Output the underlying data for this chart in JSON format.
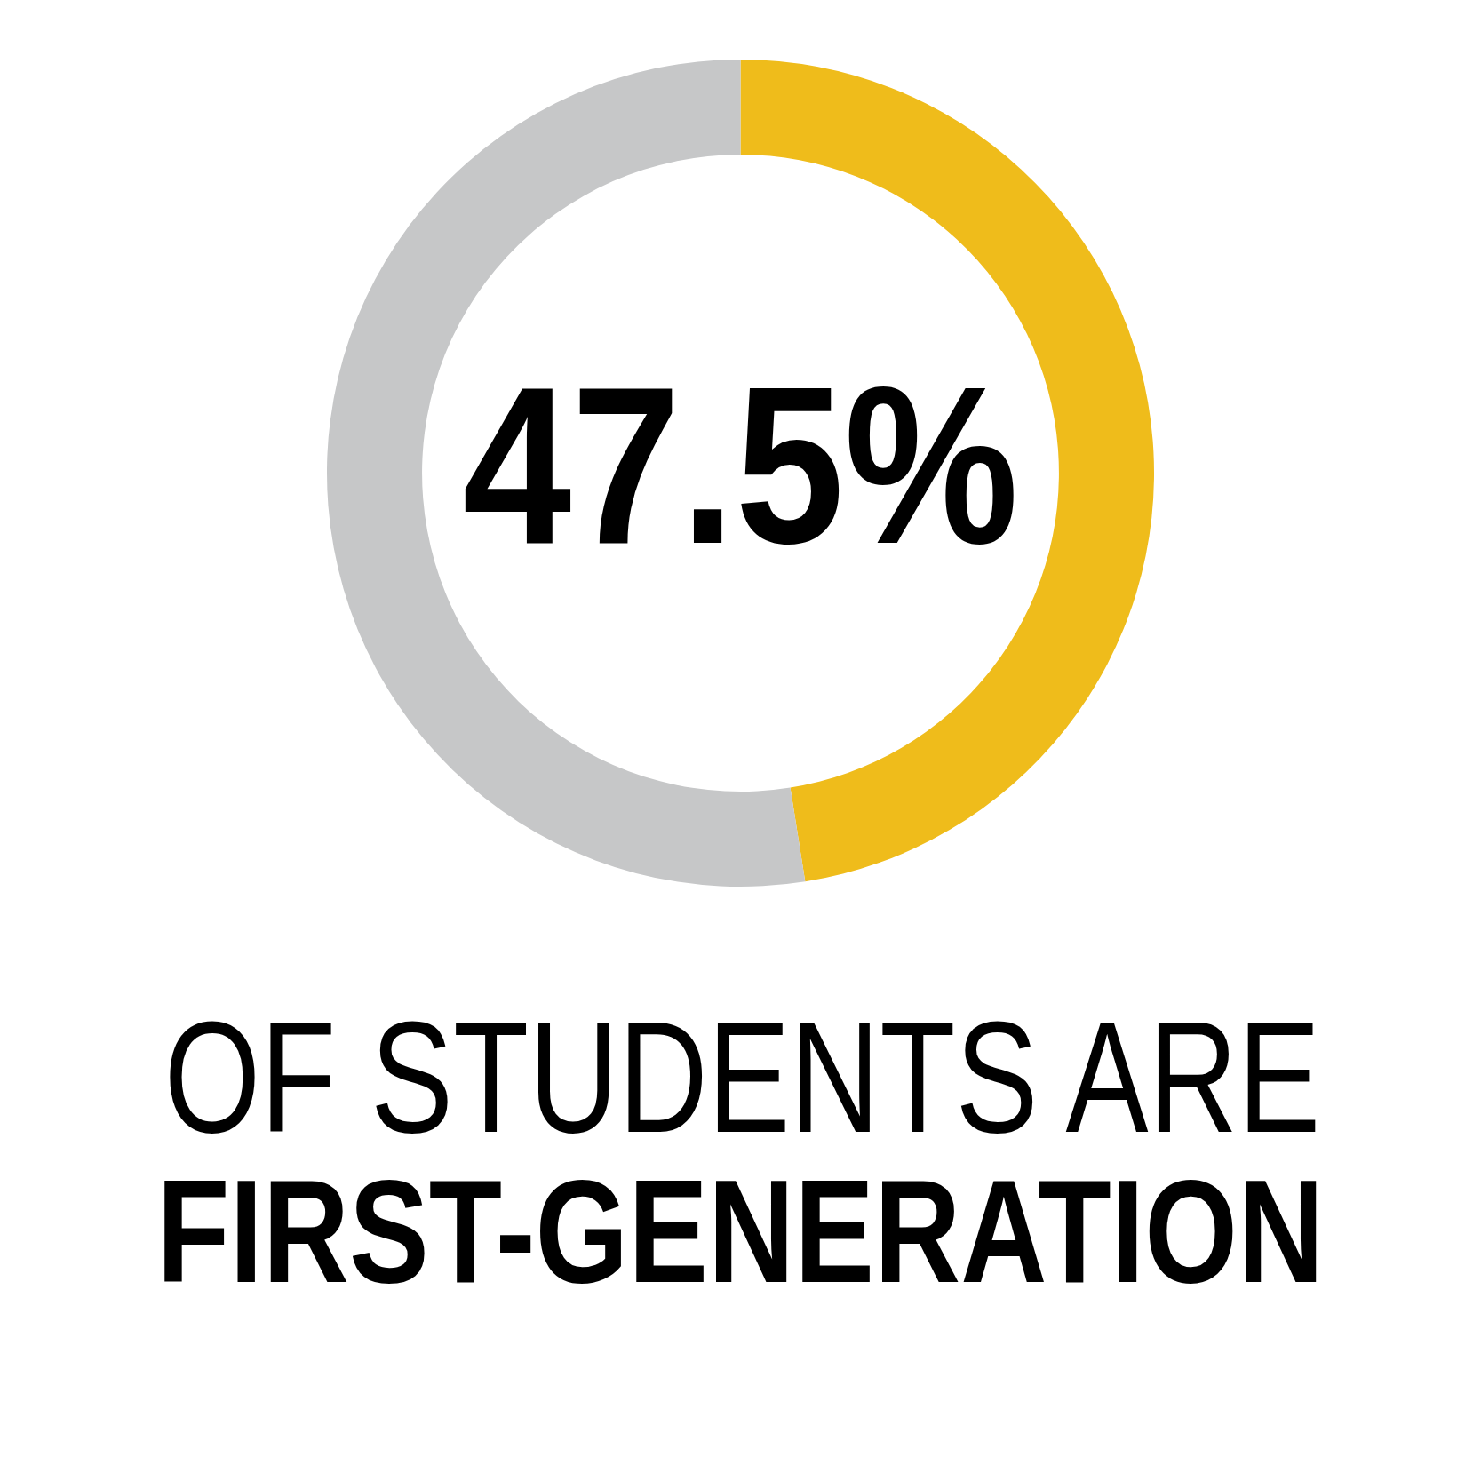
{
  "chart_data": {
    "type": "donut",
    "categories": [
      null,
      null
    ],
    "values": [
      47.5,
      52.5
    ],
    "colors": [
      "#efbc1b",
      "#c6c7c8"
    ],
    "value_labels": [
      "47.5%",
      null
    ],
    "annotations": [
      "OF STUDENTS ARE",
      "FIRST-GENERATION"
    ]
  }
}
